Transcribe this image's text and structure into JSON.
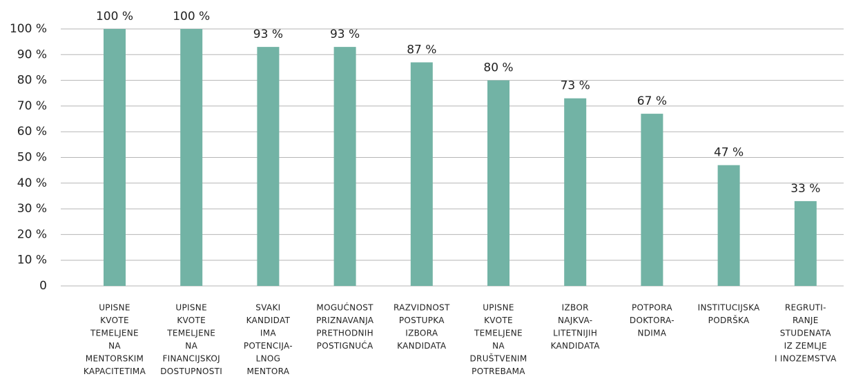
{
  "chart_data": {
    "type": "bar",
    "categories": [
      [
        "UPISNE",
        "KVOTE",
        "TEMELJENE",
        "NA",
        "MENTORSKIM",
        "KAPACITETIMA"
      ],
      [
        "UPISNE",
        "KVOTE",
        "TEMELJENE",
        "NA",
        "FINANCIJSKOJ",
        "DOSTUPNOSTI"
      ],
      [
        "SVAKI",
        "KANDIDAT",
        "IMA",
        "POTENCIJA-",
        "LNOG",
        "MENTORA"
      ],
      [
        "MOGUĆNOST",
        "PRIZNAVANJA",
        "PRETHODNIH",
        "POSTIGNUĆA"
      ],
      [
        "RAZVIDNOST",
        "POSTUPKA",
        "IZBORA",
        "KANDIDATA"
      ],
      [
        "UPISNE",
        "KVOTE",
        "TEMELJENE",
        "NA",
        "DRUŠTVENIM",
        "POTREBAMA"
      ],
      [
        "IZBOR",
        "NAJKVA-",
        "LITETNIJIH",
        "KANDIDATA"
      ],
      [
        "POTPORA",
        "DOKTORA-",
        "NDIMA"
      ],
      [
        "INSTITUCIJSKA",
        "PODRŠKA"
      ],
      [
        "REGRUTI-",
        "RANJE",
        "STUDENATA",
        "IZ ZEMLJE",
        "I INOZEMSTVA"
      ]
    ],
    "values": [
      100,
      100,
      93,
      93,
      87,
      80,
      73,
      67,
      47,
      33
    ],
    "value_labels": [
      "100 %",
      "100 %",
      "93 %",
      "93 %",
      "87 %",
      "80 %",
      "73 %",
      "67 %",
      "47 %",
      "33 %"
    ],
    "color": "#72b3a5",
    "ylim": [
      0,
      100
    ],
    "yticks": [
      0,
      {
        "value": 10,
        "label": "10 %"
      },
      {
        "value": 20,
        "label": "20 %"
      },
      {
        "value": 30,
        "label": "30 %"
      },
      {
        "value": 40,
        "label": "40 %"
      },
      {
        "value": 50,
        "label": "50 %"
      },
      {
        "value": 60,
        "label": "60 %"
      },
      {
        "value": 70,
        "label": "70 %"
      },
      {
        "value": 80,
        "label": "80 %"
      },
      {
        "value": 90,
        "label": "90 %"
      },
      {
        "value": 100,
        "label": "100 %"
      }
    ],
    "grid": true
  }
}
